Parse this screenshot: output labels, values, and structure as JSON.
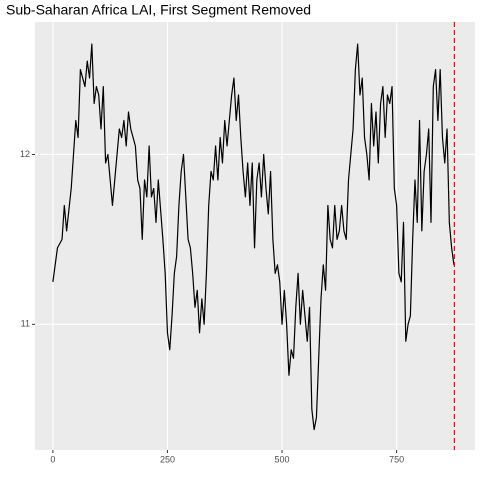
{
  "chart_data": {
    "type": "line",
    "title": "Sub-Saharan Africa LAI, First Segment Removed",
    "x": [
      0,
      10,
      20,
      25,
      30,
      40,
      50,
      55,
      60,
      70,
      75,
      80,
      85,
      90,
      95,
      100,
      105,
      110,
      115,
      120,
      125,
      130,
      140,
      145,
      150,
      155,
      160,
      165,
      170,
      180,
      185,
      190,
      195,
      200,
      205,
      210,
      215,
      220,
      225,
      230,
      240,
      245,
      250,
      255,
      260,
      265,
      270,
      275,
      280,
      285,
      290,
      295,
      300,
      305,
      310,
      315,
      320,
      325,
      330,
      335,
      340,
      345,
      350,
      355,
      360,
      365,
      370,
      375,
      380,
      390,
      395,
      400,
      405,
      410,
      415,
      420,
      425,
      430,
      435,
      440,
      445,
      450,
      455,
      460,
      465,
      470,
      475,
      480,
      485,
      490,
      495,
      500,
      505,
      510,
      515,
      520,
      525,
      530,
      535,
      540,
      545,
      550,
      555,
      560,
      565,
      570,
      575,
      580,
      585,
      590,
      595,
      600,
      605,
      610,
      615,
      620,
      625,
      630,
      635,
      640,
      645,
      650,
      655,
      660,
      665,
      670,
      675,
      680,
      685,
      690,
      695,
      700,
      705,
      710,
      715,
      720,
      725,
      730,
      735,
      740,
      745,
      750,
      755,
      760,
      765,
      770,
      775,
      780,
      785,
      790,
      795,
      800,
      805,
      810,
      815,
      820,
      825,
      830,
      835,
      840,
      845,
      850,
      855,
      860,
      865,
      870,
      875
    ],
    "series": [
      {
        "color": "#000000",
        "values": [
          11.25,
          11.45,
          11.5,
          11.7,
          11.55,
          11.8,
          12.2,
          12.1,
          12.5,
          12.4,
          12.55,
          12.45,
          12.65,
          12.3,
          12.4,
          12.35,
          12.15,
          12.4,
          11.95,
          12.0,
          11.85,
          11.7,
          12.0,
          12.15,
          12.1,
          12.2,
          12.05,
          12.25,
          12.15,
          12.05,
          11.85,
          11.8,
          11.5,
          11.85,
          11.75,
          12.05,
          11.75,
          11.8,
          11.6,
          11.85,
          11.5,
          11.3,
          10.95,
          10.85,
          11.05,
          11.3,
          11.4,
          11.7,
          11.9,
          12.0,
          11.75,
          11.5,
          11.45,
          11.3,
          11.1,
          11.2,
          10.95,
          11.15,
          11.0,
          11.3,
          11.7,
          11.9,
          11.85,
          12.05,
          11.85,
          12.1,
          11.95,
          12.2,
          12.05,
          12.35,
          12.45,
          12.2,
          12.35,
          12.1,
          11.9,
          11.75,
          11.95,
          11.7,
          11.95,
          11.45,
          11.85,
          11.95,
          11.75,
          12.0,
          11.8,
          11.65,
          11.9,
          11.5,
          11.3,
          11.35,
          11.25,
          11.0,
          11.2,
          11.0,
          10.7,
          10.85,
          10.8,
          11.1,
          11.3,
          11.0,
          11.2,
          11.05,
          10.9,
          11.1,
          10.5,
          10.38,
          10.45,
          10.8,
          11.15,
          11.35,
          11.2,
          11.7,
          11.5,
          11.45,
          11.7,
          11.5,
          11.55,
          11.7,
          11.55,
          11.5,
          11.85,
          12.0,
          12.15,
          12.5,
          12.65,
          12.35,
          12.45,
          12.1,
          12.0,
          11.85,
          12.3,
          12.05,
          12.25,
          11.95,
          12.3,
          12.4,
          12.1,
          12.35,
          12.3,
          12.4,
          11.8,
          11.7,
          11.3,
          11.25,
          11.6,
          10.9,
          11.0,
          11.05,
          11.5,
          11.85,
          11.6,
          12.2,
          11.55,
          11.9,
          12.0,
          12.15,
          11.6,
          12.4,
          12.5,
          12.2,
          12.5,
          12.1,
          11.95,
          12.15,
          11.6,
          11.45,
          11.35
        ]
      }
    ],
    "xlim": [
      -39,
      921
    ],
    "xticks": [
      0,
      250,
      500,
      750
    ],
    "ylim": [
      10.26,
      12.78
    ],
    "yticks": [
      11,
      12
    ],
    "grid": true,
    "vline": {
      "x": 876,
      "color": "#ff0000"
    }
  }
}
